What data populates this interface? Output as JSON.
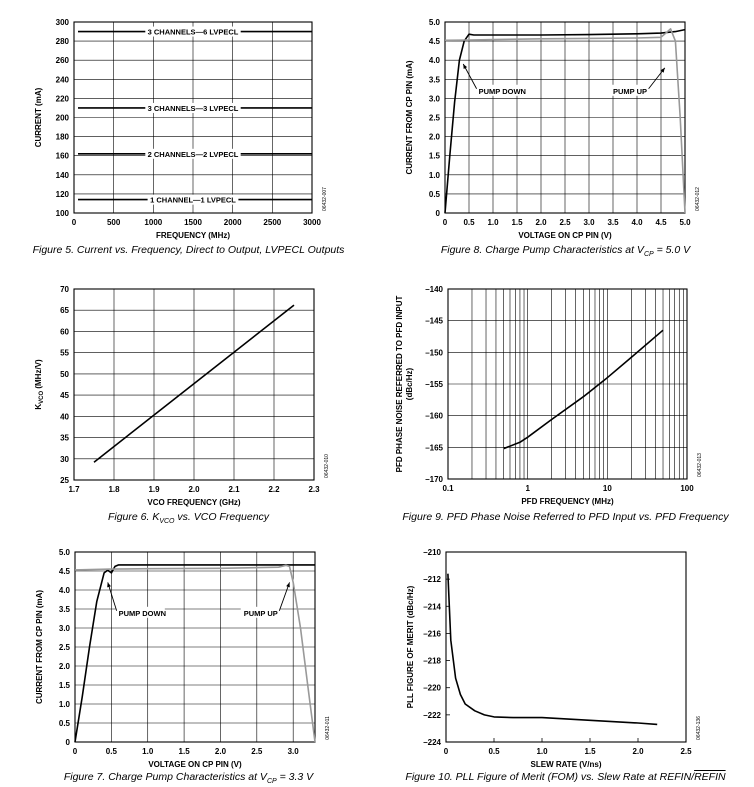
{
  "chart_data": [
    {
      "id": "fig5",
      "type": "line",
      "caption": "Figure 5. Current vs. Frequency, Direct to Output, LVPECL Outputs",
      "xlabel": "FREQUENCY (MHz)",
      "ylabel": "CURRENT (mA)",
      "xlim": [
        0,
        3000
      ],
      "ylim": [
        100,
        300
      ],
      "xticks": [
        0,
        500,
        1000,
        1500,
        2000,
        2500,
        3000
      ],
      "yticks": [
        100,
        120,
        140,
        160,
        180,
        200,
        220,
        240,
        260,
        280,
        300
      ],
      "grid": true,
      "code": "06432-007",
      "series": [
        {
          "x": [
            50,
            3000
          ],
          "y": [
            114,
            114
          ],
          "label": "1 CHANNEL—1 LVPECL",
          "label_x": 1500
        },
        {
          "x": [
            50,
            3000
          ],
          "y": [
            162,
            162
          ],
          "label": "2 CHANNELS—2 LVPECL",
          "label_x": 1500
        },
        {
          "x": [
            50,
            3000
          ],
          "y": [
            210,
            210
          ],
          "label": "3 CHANNELS—3 LVPECL",
          "label_x": 1500
        },
        {
          "x": [
            50,
            3000
          ],
          "y": [
            290,
            290
          ],
          "label": "3 CHANNELS—6 LVPECL",
          "label_x": 1500
        }
      ]
    },
    {
      "id": "fig8",
      "type": "line",
      "caption": "Figure 8. Charge Pump Characteristics at VCP = 5.0 V",
      "xlabel": "VOLTAGE ON CP PIN (V)",
      "ylabel": "CURRENT FROM CP PIN (mA)",
      "xlim": [
        0,
        5
      ],
      "ylim": [
        0,
        5
      ],
      "xticks": [
        0,
        0.5,
        1.0,
        1.5,
        2.0,
        2.5,
        3.0,
        3.5,
        4.0,
        4.5,
        5.0
      ],
      "yticks": [
        0,
        0.5,
        1.0,
        1.5,
        2.0,
        2.5,
        3.0,
        3.5,
        4.0,
        4.5,
        5.0
      ],
      "grid": true,
      "code": "06432-012",
      "series": [
        {
          "name": "PUMP DOWN",
          "color": "#000000",
          "x": [
            0,
            0.1,
            0.2,
            0.3,
            0.4,
            0.5,
            0.6,
            1.0,
            2.0,
            3.0,
            4.0,
            4.5,
            4.8,
            5.0
          ],
          "y": [
            0,
            1.5,
            2.9,
            4.0,
            4.5,
            4.68,
            4.66,
            4.66,
            4.66,
            4.67,
            4.69,
            4.71,
            4.75,
            4.8
          ]
        },
        {
          "name": "PUMP UP",
          "color": "#999999",
          "x": [
            0,
            0.5,
            1.0,
            2.0,
            3.0,
            4.0,
            4.5,
            4.7,
            4.8,
            4.9,
            5.0
          ],
          "y": [
            4.52,
            4.53,
            4.54,
            4.56,
            4.57,
            4.58,
            4.6,
            4.82,
            4.5,
            2.5,
            0
          ]
        }
      ],
      "annotations": [
        {
          "text": "PUMP DOWN",
          "x": 0.7,
          "y": 3.2,
          "arrow_to": [
            0.38,
            3.9
          ]
        },
        {
          "text": "PUMP UP",
          "x": 3.5,
          "y": 3.2,
          "arrow_to": [
            4.58,
            3.8
          ]
        }
      ]
    },
    {
      "id": "fig6",
      "type": "line",
      "caption": "Figure 6. KVCO vs. VCO Frequency",
      "xlabel": "VCO FREQUENCY (GHz)",
      "ylabel": "KVCO (MHz/V)",
      "xlim": [
        1.7,
        2.3
      ],
      "ylim": [
        25,
        70
      ],
      "xticks": [
        1.7,
        1.8,
        1.9,
        2.0,
        2.1,
        2.2,
        2.3
      ],
      "yticks": [
        25,
        30,
        35,
        40,
        45,
        50,
        55,
        60,
        65,
        70
      ],
      "grid": true,
      "code": "06432-010",
      "series": [
        {
          "color": "#000000",
          "x": [
            1.75,
            2.25
          ],
          "y": [
            29.2,
            66.2
          ]
        }
      ]
    },
    {
      "id": "fig9",
      "type": "line",
      "caption": "Figure 9. PFD Phase Noise Referred to PFD Input vs. PFD Frequency",
      "xlabel": "PFD FREQUENCY (MHz)",
      "ylabel": "PFD PHASE NOISE REFERRED TO PFD INPUT (dBc/Hz)",
      "xscale": "log",
      "xlim": [
        0.1,
        100
      ],
      "ylim": [
        -170,
        -140
      ],
      "xticks": [
        0.1,
        1,
        10,
        100
      ],
      "xtick_labels": [
        "0.1",
        "1",
        "10",
        "100"
      ],
      "yticks": [
        -170,
        -165,
        -160,
        -155,
        -150,
        -145,
        -140
      ],
      "ytick_labels": [
        "–170",
        "–165",
        "–160",
        "–155",
        "–150",
        "–145",
        "–140"
      ],
      "grid": true,
      "code": "06432-013",
      "series": [
        {
          "color": "#000000",
          "x": [
            0.5,
            0.8,
            1.0,
            2.0,
            5.0,
            10.0,
            20.0,
            50.0
          ],
          "y": [
            -165.2,
            -164.2,
            -163.4,
            -160.6,
            -157.0,
            -154.0,
            -150.8,
            -146.5
          ]
        }
      ]
    },
    {
      "id": "fig7",
      "type": "line",
      "caption": "Figure 7. Charge Pump Characteristics at VCP = 3.3 V",
      "xlabel": "VOLTAGE ON CP PIN (V)",
      "ylabel": "CURRENT FROM CP PIN (mA)",
      "xlim": [
        0,
        3.3
      ],
      "ylim": [
        0,
        5
      ],
      "xticks": [
        0,
        0.5,
        1.0,
        1.5,
        2.0,
        2.5,
        3.0
      ],
      "yticks": [
        0,
        0.5,
        1.0,
        1.5,
        2.0,
        2.5,
        3.0,
        3.5,
        4.0,
        4.5,
        5.0
      ],
      "grid": true,
      "code": "06432-011",
      "series": [
        {
          "name": "PUMP DOWN",
          "color": "#000000",
          "x": [
            0,
            0.1,
            0.2,
            0.3,
            0.4,
            0.45,
            0.5,
            0.55,
            0.6,
            1.0,
            2.0,
            3.0,
            3.3
          ],
          "y": [
            0,
            1.2,
            2.5,
            3.7,
            4.45,
            4.52,
            4.45,
            4.62,
            4.66,
            4.66,
            4.66,
            4.66,
            4.66
          ]
        },
        {
          "name": "PUMP UP",
          "color": "#999999",
          "x": [
            0,
            0.5,
            1.0,
            2.0,
            2.8,
            2.9,
            2.95,
            3.0,
            3.1,
            3.2,
            3.3
          ],
          "y": [
            4.53,
            4.55,
            4.56,
            4.57,
            4.6,
            4.65,
            4.62,
            4.2,
            3.0,
            1.5,
            0
          ]
        }
      ],
      "annotations": [
        {
          "text": "PUMP DOWN",
          "x": 0.6,
          "y": 3.4,
          "arrow_to": [
            0.45,
            4.2
          ]
        },
        {
          "text": "PUMP UP",
          "x": 2.32,
          "y": 3.4,
          "arrow_to": [
            2.95,
            4.2
          ]
        }
      ]
    },
    {
      "id": "fig10",
      "type": "line",
      "caption": "Figure 10. PLL Figure of Merit (FOM) vs. Slew Rate at REFIN/REFIN",
      "caption_main": "Figure 10. PLL Figure of Merit (FOM) vs. Slew Rate at REFIN/",
      "caption_over": "REFIN",
      "xlabel": "SLEW RATE (V/ns)",
      "ylabel": "PLL FIGURE OF MERIT (dBc/Hz)",
      "xlim": [
        0,
        2.5
      ],
      "ylim": [
        -224,
        -210
      ],
      "xticks": [
        0,
        0.5,
        1.0,
        1.5,
        2.0,
        2.5
      ],
      "yticks": [
        -224,
        -222,
        -220,
        -218,
        -216,
        -214,
        -212,
        -210
      ],
      "ytick_labels": [
        "–224",
        "–222",
        "–220",
        "–218",
        "–216",
        "–214",
        "–212",
        "–210"
      ],
      "grid": false,
      "code": "06432-136",
      "series": [
        {
          "color": "#000000",
          "x": [
            0.02,
            0.05,
            0.1,
            0.15,
            0.2,
            0.3,
            0.4,
            0.5,
            0.7,
            1.0,
            1.5,
            2.0,
            2.2
          ],
          "y": [
            -211.6,
            -216.5,
            -219.3,
            -220.5,
            -221.2,
            -221.7,
            -222.0,
            -222.15,
            -222.2,
            -222.2,
            -222.4,
            -222.6,
            -222.7
          ]
        }
      ]
    }
  ]
}
